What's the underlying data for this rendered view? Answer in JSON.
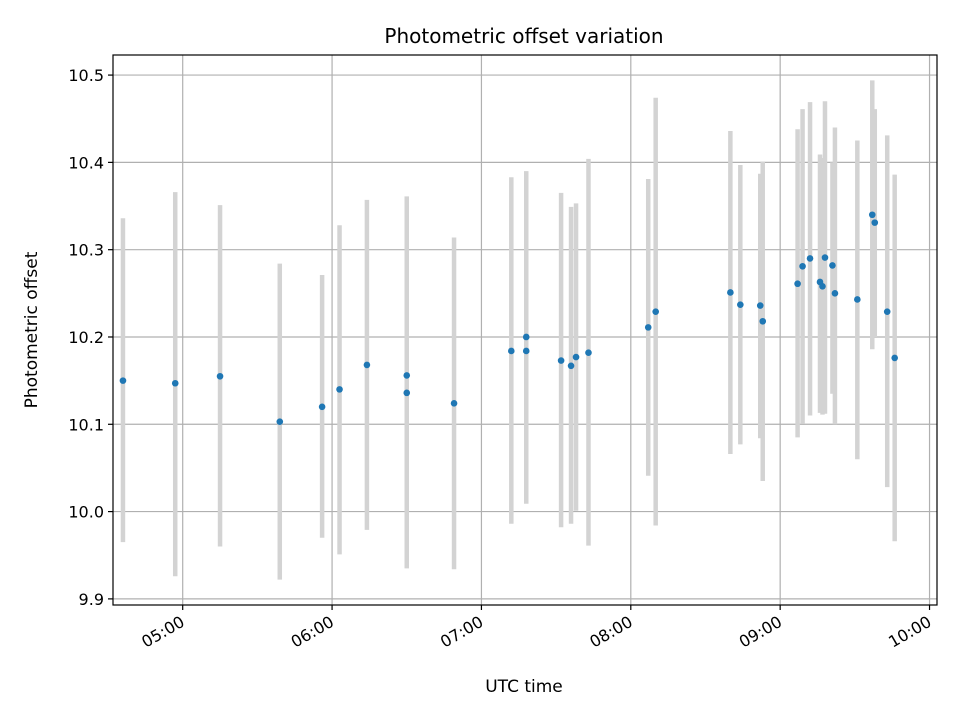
{
  "chart_data": {
    "type": "scatter",
    "title": "Photometric offset variation",
    "xlabel": "UTC time",
    "ylabel": "Photometric offset",
    "xlim": [
      "04:32",
      "10:03"
    ],
    "ylim": [
      9.893,
      10.523
    ],
    "x_ticks": [
      "05:00",
      "06:00",
      "07:00",
      "08:00",
      "09:00",
      "10:00"
    ],
    "y_ticks": [
      9.9,
      10.0,
      10.1,
      10.2,
      10.3,
      10.4,
      10.5
    ],
    "y_tick_labels": [
      "9.9",
      "10.0",
      "10.1",
      "10.2",
      "10.3",
      "10.4",
      "10.5"
    ],
    "grid": true,
    "colors": {
      "point": "#1f77b4",
      "errorbar": "#d3d3d3",
      "grid": "#b0b0b0"
    },
    "series": [
      {
        "points": [
          {
            "x": "04:36",
            "y": 10.15,
            "low": 9.965,
            "high": 10.336
          },
          {
            "x": "04:57",
            "y": 10.147,
            "low": 9.926,
            "high": 10.366
          },
          {
            "x": "05:15",
            "y": 10.155,
            "low": 9.96,
            "high": 10.351
          },
          {
            "x": "05:39",
            "y": 10.103,
            "low": 9.922,
            "high": 10.284
          },
          {
            "x": "05:56",
            "y": 10.12,
            "low": 9.97,
            "high": 10.271
          },
          {
            "x": "06:03",
            "y": 10.14,
            "low": 9.951,
            "high": 10.328
          },
          {
            "x": "06:14",
            "y": 10.168,
            "low": 9.979,
            "high": 10.357
          },
          {
            "x": "06:30",
            "y": 10.156,
            "low": 9.98,
            "high": 10.361
          },
          {
            "x": "06:30",
            "y": 10.136,
            "low": 9.935,
            "high": 10.337
          },
          {
            "x": "06:49",
            "y": 10.124,
            "low": 9.934,
            "high": 10.314
          },
          {
            "x": "07:12",
            "y": 10.184,
            "low": 9.986,
            "high": 10.383
          },
          {
            "x": "07:18",
            "y": 10.2,
            "low": 10.009,
            "high": 10.39
          },
          {
            "x": "07:18",
            "y": 10.184,
            "low": 10.05,
            "high": 10.32
          },
          {
            "x": "07:32",
            "y": 10.173,
            "low": 9.982,
            "high": 10.365
          },
          {
            "x": "07:36",
            "y": 10.167,
            "low": 9.986,
            "high": 10.349
          },
          {
            "x": "07:38",
            "y": 10.177,
            "low": 10.001,
            "high": 10.353
          },
          {
            "x": "07:43",
            "y": 10.182,
            "low": 9.961,
            "high": 10.404
          },
          {
            "x": "08:07",
            "y": 10.211,
            "low": 10.041,
            "high": 10.381
          },
          {
            "x": "08:10",
            "y": 10.229,
            "low": 9.984,
            "high": 10.474
          },
          {
            "x": "08:40",
            "y": 10.251,
            "low": 10.066,
            "high": 10.436
          },
          {
            "x": "08:44",
            "y": 10.237,
            "low": 10.077,
            "high": 10.397
          },
          {
            "x": "08:52",
            "y": 10.236,
            "low": 10.084,
            "high": 10.387
          },
          {
            "x": "08:53",
            "y": 10.218,
            "low": 10.035,
            "high": 10.401
          },
          {
            "x": "09:07",
            "y": 10.261,
            "low": 10.085,
            "high": 10.438
          },
          {
            "x": "09:09",
            "y": 10.281,
            "low": 10.101,
            "high": 10.461
          },
          {
            "x": "09:12",
            "y": 10.29,
            "low": 10.11,
            "high": 10.469
          },
          {
            "x": "09:16",
            "y": 10.263,
            "low": 10.113,
            "high": 10.409
          },
          {
            "x": "09:17",
            "y": 10.258,
            "low": 10.111,
            "high": 10.405
          },
          {
            "x": "09:18",
            "y": 10.291,
            "low": 10.112,
            "high": 10.47
          },
          {
            "x": "09:21",
            "y": 10.282,
            "low": 10.135,
            "high": 10.4
          },
          {
            "x": "09:22",
            "y": 10.25,
            "low": 10.1,
            "high": 10.44
          },
          {
            "x": "09:31",
            "y": 10.243,
            "low": 10.06,
            "high": 10.425
          },
          {
            "x": "09:37",
            "y": 10.34,
            "low": 10.186,
            "high": 10.494
          },
          {
            "x": "09:38",
            "y": 10.331,
            "low": 10.2,
            "high": 10.461
          },
          {
            "x": "09:43",
            "y": 10.229,
            "low": 10.028,
            "high": 10.431
          },
          {
            "x": "09:46",
            "y": 10.176,
            "low": 9.966,
            "high": 10.386
          }
        ]
      }
    ]
  }
}
